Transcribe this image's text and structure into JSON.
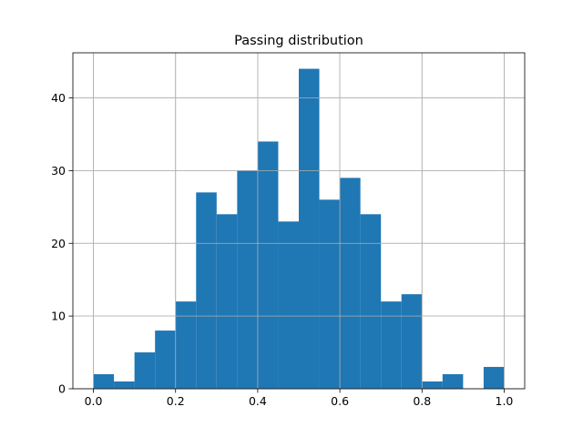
{
  "chart_data": {
    "type": "bar",
    "title": "Passing distribution",
    "xlabel": "",
    "ylabel": "",
    "bin_edges": [
      0.0,
      0.05,
      0.1,
      0.15,
      0.2,
      0.25,
      0.3,
      0.35,
      0.4,
      0.45,
      0.5,
      0.55,
      0.6,
      0.65,
      0.7,
      0.75,
      0.8,
      0.85,
      0.9,
      0.95,
      1.0
    ],
    "values": [
      2,
      1,
      5,
      8,
      12,
      27,
      24,
      30,
      34,
      23,
      44,
      26,
      29,
      24,
      12,
      13,
      1,
      2,
      0,
      3
    ],
    "xlim": [
      -0.05,
      1.05
    ],
    "ylim": [
      0,
      46.2
    ],
    "x_ticks": [
      0.0,
      0.2,
      0.4,
      0.6,
      0.8,
      1.0
    ],
    "x_tick_labels": [
      "0.0",
      "0.2",
      "0.4",
      "0.6",
      "0.8",
      "1.0"
    ],
    "y_ticks": [
      0,
      10,
      20,
      30,
      40
    ],
    "y_tick_labels": [
      "0",
      "10",
      "20",
      "30",
      "40"
    ],
    "grid": true,
    "bar_color": "#1f77b4",
    "grid_color": "#b0b0b0"
  }
}
